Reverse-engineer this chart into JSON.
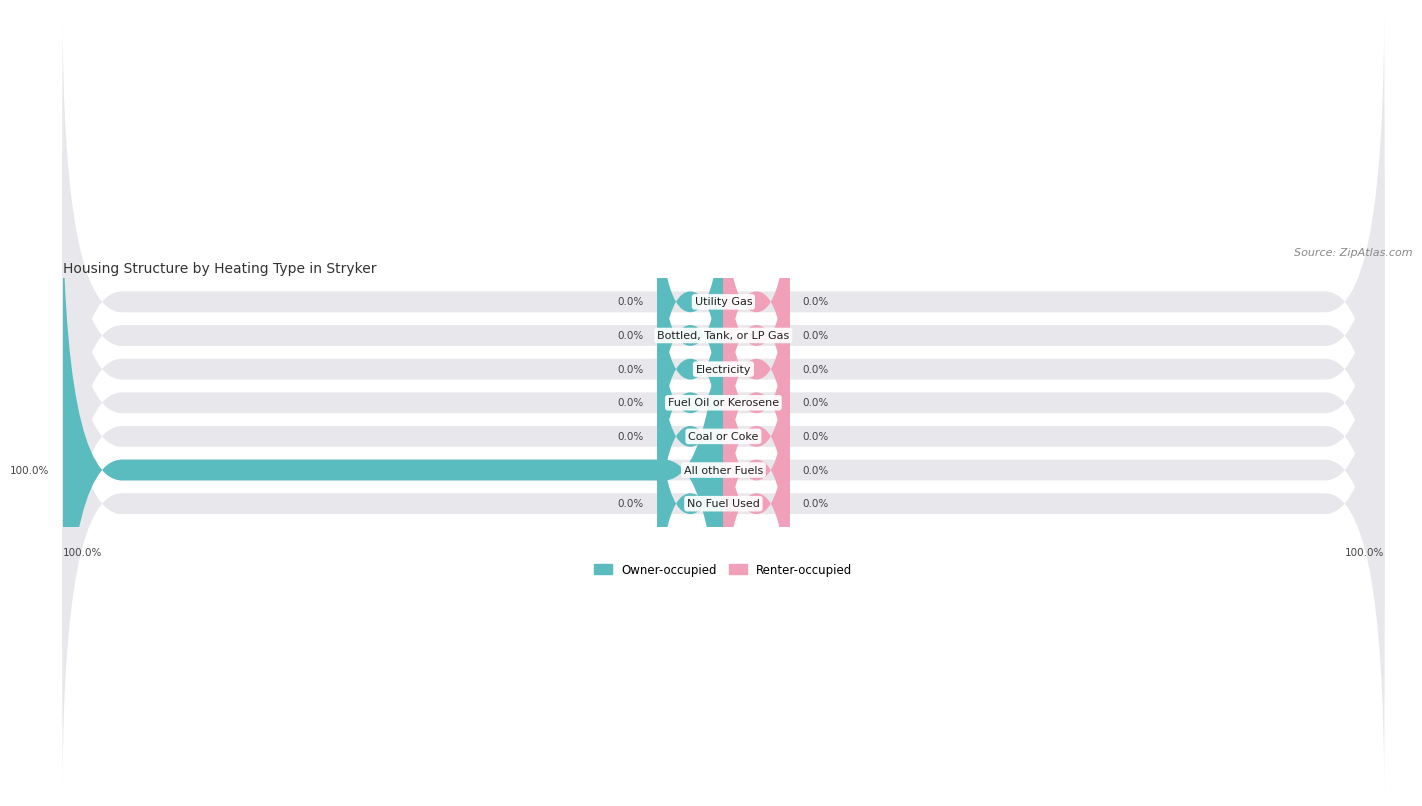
{
  "title": "Housing Structure by Heating Type in Stryker",
  "source": "Source: ZipAtlas.com",
  "categories": [
    "Utility Gas",
    "Bottled, Tank, or LP Gas",
    "Electricity",
    "Fuel Oil or Kerosene",
    "Coal or Coke",
    "All other Fuels",
    "No Fuel Used"
  ],
  "owner_values": [
    0.0,
    0.0,
    0.0,
    0.0,
    0.0,
    100.0,
    0.0
  ],
  "renter_values": [
    0.0,
    0.0,
    0.0,
    0.0,
    0.0,
    0.0,
    0.0
  ],
  "owner_color": "#5bbcbf",
  "renter_color": "#f0a0b8",
  "bar_bg_color": "#e8e8ec",
  "bar_height": 0.62,
  "small_seg_pct": 10,
  "owner_label": "Owner-occupied",
  "renter_label": "Renter-occupied",
  "axis_label_left": "100.0%",
  "axis_label_right": "100.0%",
  "title_fontsize": 10,
  "source_fontsize": 8,
  "value_fontsize": 7.5,
  "category_fontsize": 8,
  "legend_fontsize": 8.5
}
